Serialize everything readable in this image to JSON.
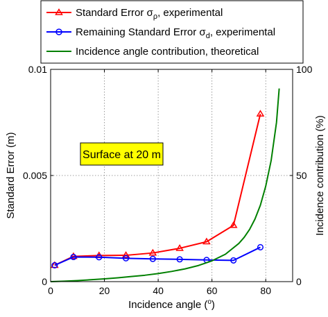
{
  "chart_data": {
    "type": "line",
    "xlabel": "Incidence angle (°)",
    "ylabel": "Standard Error (m)",
    "y2label": "Incidence contribution (%)",
    "xlim": [
      0,
      90
    ],
    "ylim": [
      0,
      0.01
    ],
    "y2lim": [
      0,
      100
    ],
    "x_ticks": [
      "0",
      "20",
      "40",
      "60",
      "80"
    ],
    "y_ticks": [
      "0",
      "0.005",
      "0.01"
    ],
    "y2_ticks": [
      "0",
      "50",
      "100"
    ],
    "grid": true,
    "legend_position": "top (outside plot)",
    "annotation": "Surface at 20 m",
    "series": [
      {
        "name": "Standard Error σρ, experimental",
        "legend_main": "Standard Error σ",
        "legend_sub": "ρ",
        "legend_tail": ", experimental",
        "color": "#ff0000",
        "marker": "triangle",
        "axis": "left",
        "x": [
          1.5,
          8.5,
          18,
          28,
          38,
          48,
          58,
          68,
          78
        ],
        "y": [
          0.00077,
          0.00119,
          0.00123,
          0.00124,
          0.00135,
          0.00157,
          0.00188,
          0.00265,
          0.0079
        ]
      },
      {
        "name": "Remaining Standard Error σd, experimental",
        "legend_main": "Remaining Standard Error σ",
        "legend_sub": "d",
        "legend_tail": ", experimental",
        "color": "#0000ff",
        "marker": "circle",
        "axis": "left",
        "x": [
          1.5,
          8.5,
          18,
          28,
          38,
          48,
          58,
          68,
          78
        ],
        "y": [
          0.00077,
          0.00116,
          0.00115,
          0.0011,
          0.00107,
          0.00105,
          0.00102,
          0.001,
          0.00162
        ]
      },
      {
        "name": "Incidence angle contribution, theoretical",
        "legend_main": "Incidence angle contribution, theoretical",
        "color": "#008000",
        "marker": "none",
        "axis": "right",
        "x": [
          0,
          5,
          10,
          15,
          20,
          25,
          30,
          35,
          40,
          45,
          50,
          55,
          60,
          65,
          70,
          72,
          74,
          76,
          78,
          80,
          82,
          84,
          85
        ],
        "y": [
          0,
          0.2,
          0.5,
          0.9,
          1.3,
          1.8,
          2.4,
          3.0,
          3.8,
          4.8,
          6.0,
          7.6,
          9.8,
          12.9,
          18.0,
          20.9,
          24.6,
          29.5,
          36.0,
          45.0,
          57.0,
          75.0,
          91.0
        ]
      }
    ]
  }
}
